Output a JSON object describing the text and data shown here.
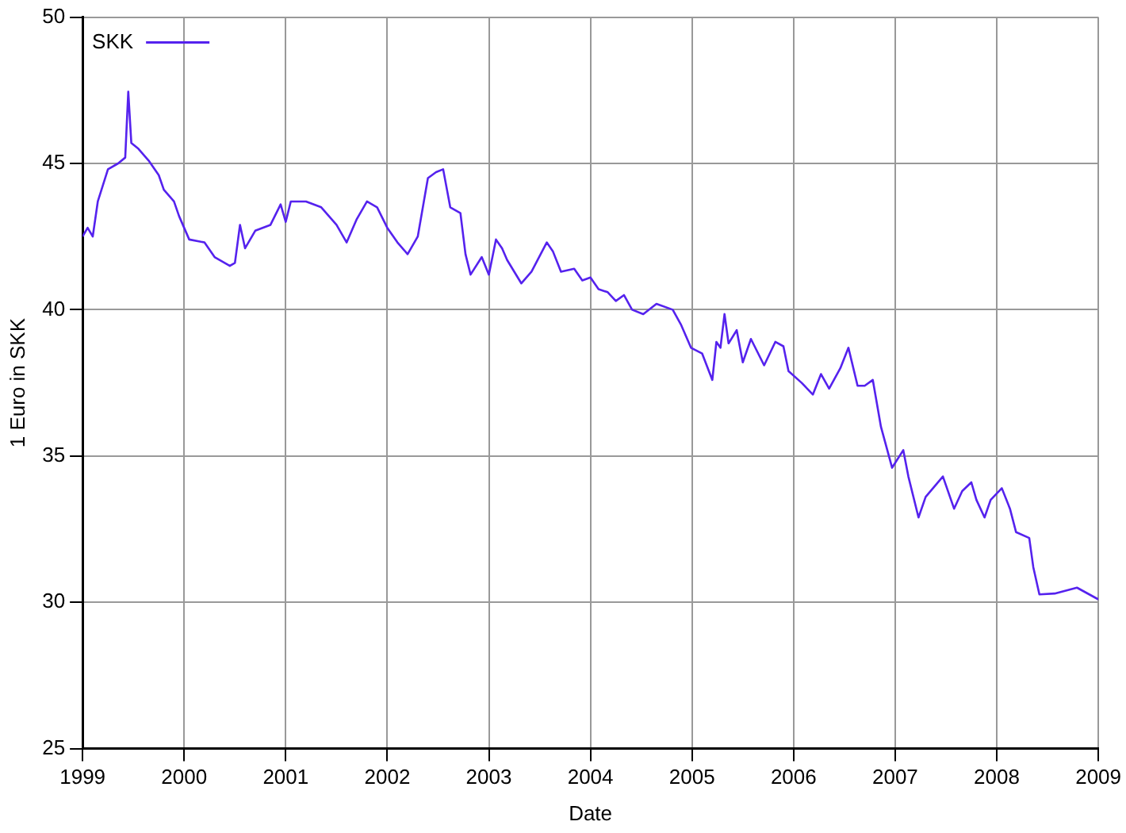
{
  "chart_data": {
    "type": "line",
    "xlabel": "Date",
    "ylabel": "1 Euro in SKK",
    "xlim": [
      1999,
      2009
    ],
    "xticks": [
      1999,
      2000,
      2001,
      2002,
      2003,
      2004,
      2005,
      2006,
      2007,
      2008,
      2009
    ],
    "ylim": [
      25,
      50
    ],
    "yticks": [
      25,
      30,
      35,
      40,
      45,
      50
    ],
    "grid": true,
    "legend": "top left",
    "marker": "none",
    "line_style": "solid",
    "series": [
      {
        "name": "SKK",
        "color": "#5522ee",
        "x": [
          1999.0,
          1999.05,
          1999.1,
          1999.15,
          1999.25,
          1999.35,
          1999.42,
          1999.45,
          1999.48,
          1999.55,
          1999.65,
          1999.75,
          1999.8,
          1999.9,
          1999.95,
          2000.05,
          2000.2,
          2000.3,
          2000.45,
          2000.5,
          2000.55,
          2000.6,
          2000.7,
          2000.85,
          2000.95,
          2001.0,
          2001.05,
          2001.2,
          2001.35,
          2001.5,
          2001.6,
          2001.7,
          2001.8,
          2001.9,
          2002.0,
          2002.1,
          2002.2,
          2002.3,
          2002.4,
          2002.48,
          2002.55,
          2002.62,
          2002.72,
          2002.77,
          2002.82,
          2002.93,
          2003.0,
          2003.07,
          2003.13,
          2003.18,
          2003.32,
          2003.42,
          2003.57,
          2003.63,
          2003.71,
          2003.84,
          2003.92,
          2004.0,
          2004.08,
          2004.17,
          2004.25,
          2004.33,
          2004.41,
          2004.52,
          2004.65,
          2004.81,
          2004.89,
          2004.99,
          2005.1,
          2005.2,
          2005.24,
          2005.28,
          2005.32,
          2005.36,
          2005.44,
          2005.5,
          2005.58,
          2005.71,
          2005.82,
          2005.9,
          2005.95,
          2006.08,
          2006.19,
          2006.27,
          2006.35,
          2006.46,
          2006.54,
          2006.63,
          2006.7,
          2006.78,
          2006.86,
          2006.97,
          2007.08,
          2007.13,
          2007.23,
          2007.3,
          2007.47,
          2007.58,
          2007.66,
          2007.75,
          2007.8,
          2007.88,
          2007.94,
          2008.05,
          2008.13,
          2008.19,
          2008.32,
          2008.36,
          2008.42,
          2008.57,
          2008.79,
          2009.0
        ],
        "values": [
          42.5,
          42.8,
          42.5,
          43.7,
          44.8,
          45.0,
          45.2,
          47.45,
          45.7,
          45.5,
          45.1,
          44.6,
          44.1,
          43.7,
          43.2,
          42.4,
          42.3,
          41.8,
          41.5,
          41.6,
          42.9,
          42.1,
          42.7,
          42.9,
          43.6,
          43.0,
          43.7,
          43.7,
          43.5,
          42.9,
          42.3,
          43.1,
          43.7,
          43.5,
          42.8,
          42.3,
          41.9,
          42.5,
          44.5,
          44.7,
          44.8,
          43.5,
          43.3,
          41.9,
          41.2,
          41.8,
          41.2,
          42.4,
          42.1,
          41.7,
          40.9,
          41.3,
          42.3,
          42.0,
          41.3,
          41.4,
          41.0,
          41.1,
          40.7,
          40.6,
          40.3,
          40.5,
          40.0,
          39.85,
          40.2,
          40.0,
          39.5,
          38.7,
          38.5,
          37.6,
          38.9,
          38.7,
          39.85,
          38.85,
          39.3,
          38.2,
          39.0,
          38.1,
          38.9,
          38.75,
          37.9,
          37.5,
          37.1,
          37.8,
          37.3,
          38.0,
          38.7,
          37.4,
          37.4,
          37.6,
          36.0,
          34.6,
          35.2,
          34.3,
          32.9,
          33.6,
          34.3,
          33.2,
          33.8,
          34.1,
          33.5,
          32.9,
          33.5,
          33.9,
          33.2,
          32.4,
          32.2,
          31.2,
          30.27,
          30.3,
          30.5,
          30.1
        ]
      }
    ]
  }
}
